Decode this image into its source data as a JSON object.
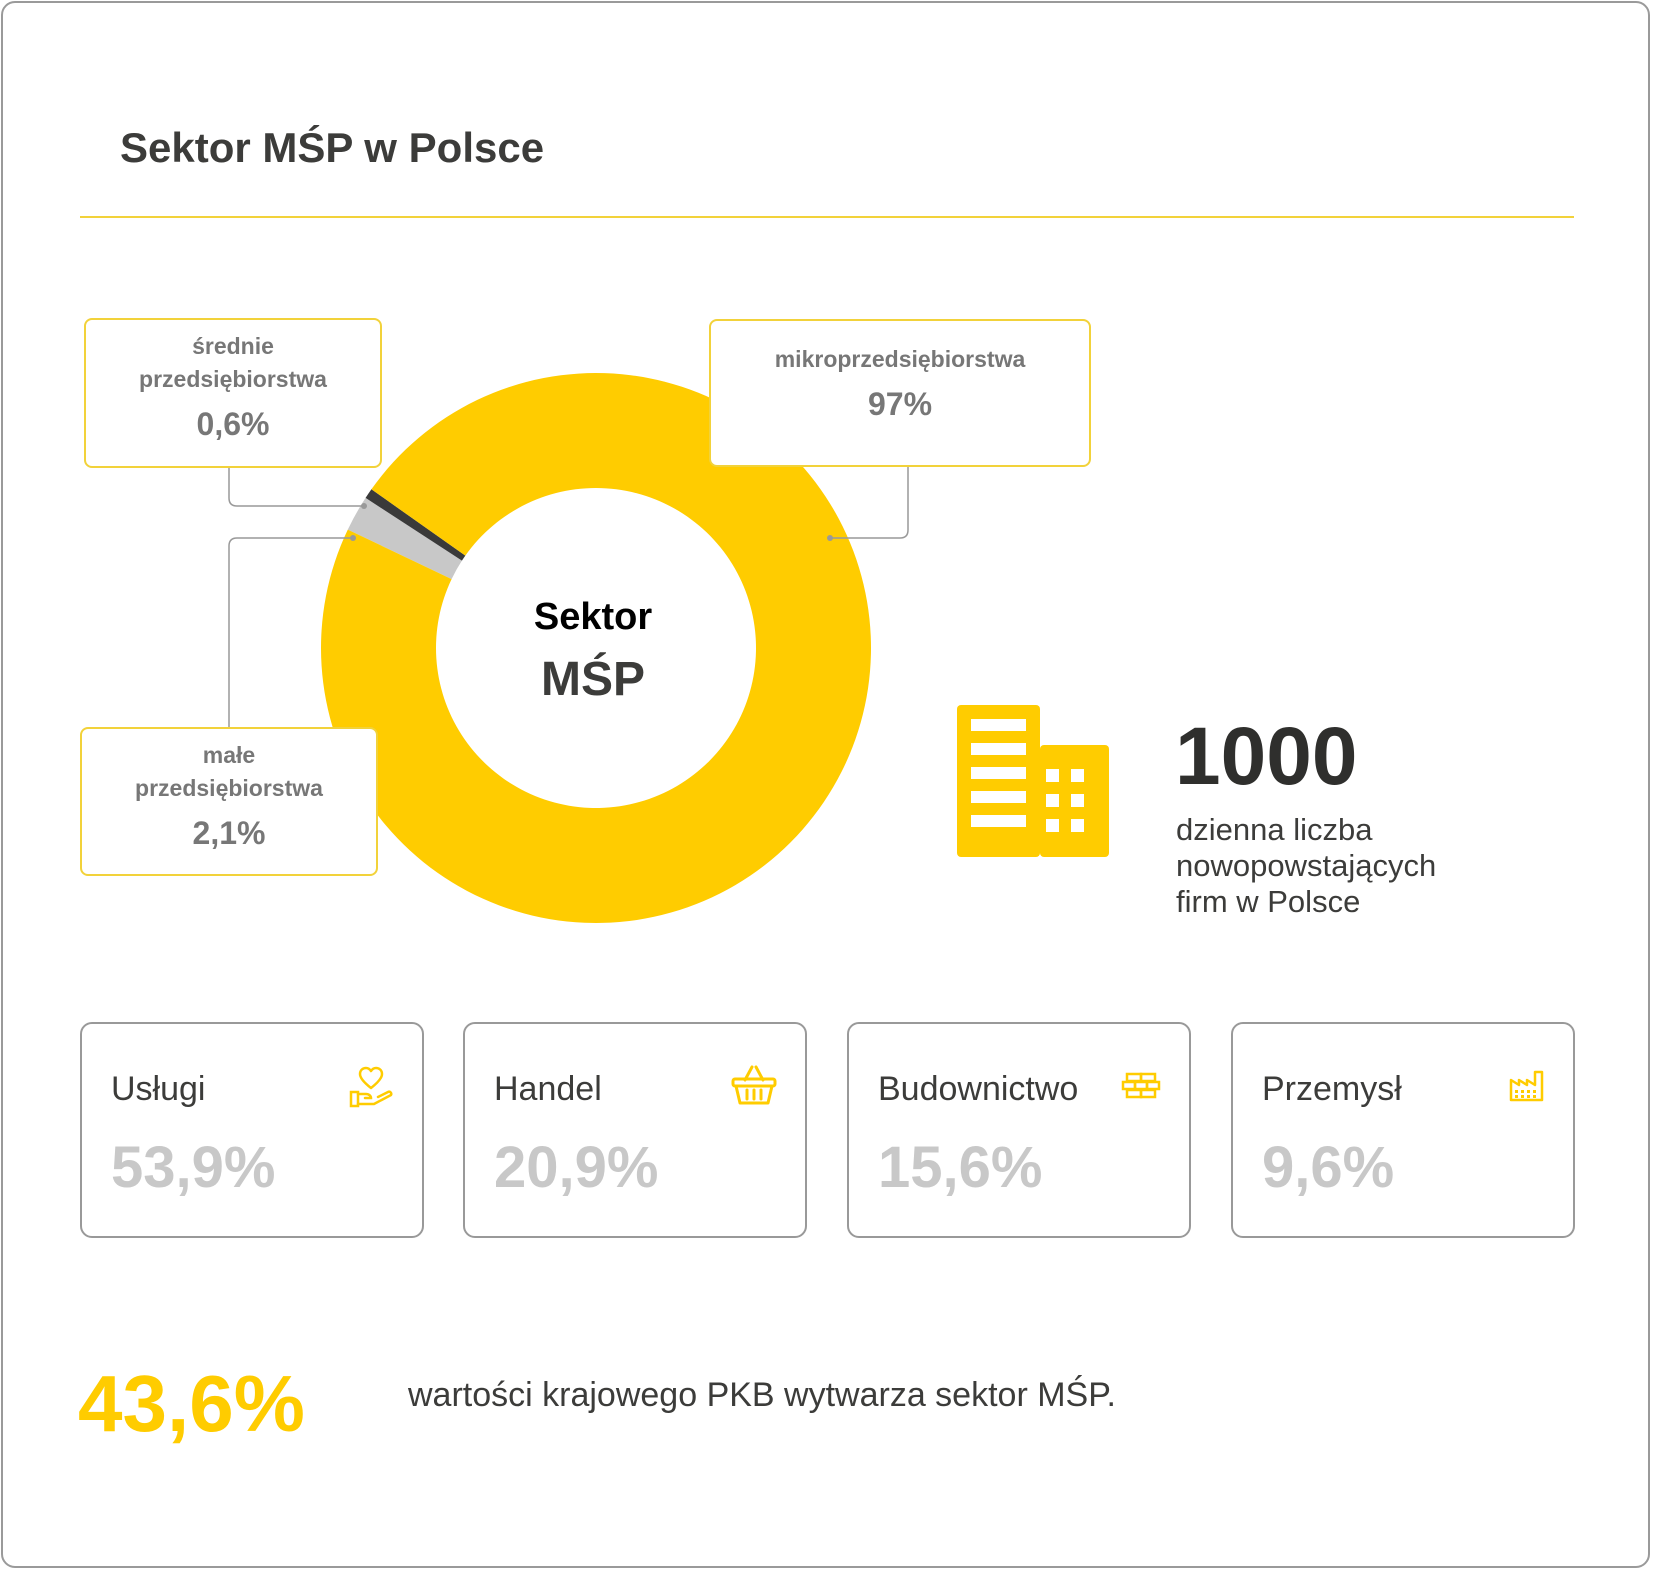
{
  "title": "Sektor MŚP w Polsce",
  "center": {
    "line1": "Sektor",
    "line2": "MŚP"
  },
  "colors": {
    "accent": "#ffcc00",
    "light_grey": "#c8c8c8",
    "dark_grey": "#3c3c3a",
    "border": "#999999"
  },
  "chart_data": {
    "type": "pie",
    "title": "Sektor MŚP",
    "series": [
      {
        "name": "mikroprzedsiębiorstwa",
        "value": 97,
        "label": "97%",
        "color": "#ffcc00"
      },
      {
        "name": "średnie przedsiębiorstwa",
        "value": 0.6,
        "label": "0,6%",
        "color": "#3a3a3a"
      },
      {
        "name": "małe przedsiębiorstwa",
        "value": 2.1,
        "label": "2,1%",
        "color": "#c8c8c8"
      }
    ]
  },
  "callouts": {
    "srednie": {
      "line1": "średnie",
      "line2": "przedsiębiorstwa",
      "pct": "0,6%"
    },
    "mikro": {
      "line1": "mikroprzedsiębiorstwa",
      "pct": "97%"
    },
    "male": {
      "line1": "małe",
      "line2": "przedsiębiorstwa",
      "pct": "2,1%"
    }
  },
  "daily": {
    "number": "1000",
    "line1": "dzienna liczba",
    "line2": "nowopowstających",
    "line3": "firm w Polsce",
    "icon": "building-icon"
  },
  "sectors": [
    {
      "name": "Usługi",
      "value": "53,9%",
      "icon": "hand-heart-icon"
    },
    {
      "name": "Handel",
      "value": "20,9%",
      "icon": "basket-icon"
    },
    {
      "name": "Budownictwo",
      "value": "15,6%",
      "icon": "bricks-icon"
    },
    {
      "name": "Przemysł",
      "value": "9,6%",
      "icon": "factory-icon"
    }
  ],
  "gdp": {
    "value": "43,6%",
    "text": "wartości krajowego PKB wytwarza sektor MŚP."
  }
}
